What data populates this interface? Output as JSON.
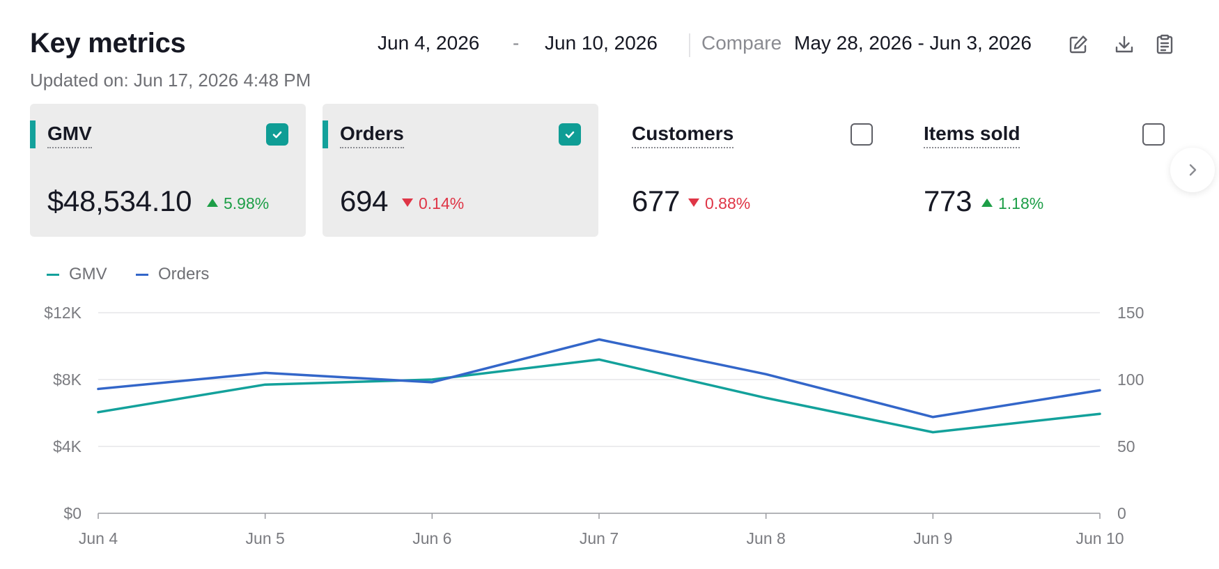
{
  "header": {
    "title": "Key metrics",
    "updated": "Updated on: Jun 17, 2026 4:48 PM",
    "date_start": "Jun 4, 2026",
    "date_sep": "-",
    "date_end": "Jun 10, 2026",
    "compare_label": "Compare",
    "compare_range": "May 28, 2026 - Jun 3, 2026"
  },
  "icons": [
    "edit-icon",
    "download-icon",
    "clipboard-icon",
    "chevron-right-icon",
    "checkmark-icon"
  ],
  "cards": [
    {
      "label": "GMV",
      "value": "$48,534.10",
      "delta": "5.98%",
      "direction": "up",
      "selected": true
    },
    {
      "label": "Orders",
      "value": "694",
      "delta": "0.14%",
      "direction": "down",
      "selected": true
    },
    {
      "label": "Customers",
      "value": "677",
      "delta": "0.88%",
      "direction": "down",
      "selected": false
    },
    {
      "label": "Items sold",
      "value": "773",
      "delta": "1.18%",
      "direction": "up",
      "selected": false
    }
  ],
  "colors": {
    "gmv": "#13a19b",
    "orders": "#3366c9",
    "positive": "#1d9e47",
    "negative": "#df3546",
    "selected_card": "#ececec"
  },
  "chart_data": {
    "type": "line",
    "legend_position": "top-left",
    "grid": true,
    "x": [
      "Jun 4",
      "Jun 5",
      "Jun 6",
      "Jun 7",
      "Jun 8",
      "Jun 9",
      "Jun 10"
    ],
    "y_left": {
      "ylim": [
        0,
        12000
      ],
      "ticks": [
        0,
        4000,
        8000,
        12000
      ],
      "tick_labels": [
        "$0",
        "$4K",
        "$8K",
        "$12K"
      ]
    },
    "y_right": {
      "ylim": [
        0,
        150
      ],
      "ticks": [
        0,
        50,
        100,
        150
      ],
      "tick_labels": [
        "0",
        "50",
        "100",
        "150"
      ]
    },
    "series": [
      {
        "name": "GMV",
        "axis": "left",
        "values": [
          6050,
          7700,
          8000,
          9200,
          6900,
          4850,
          5950
        ]
      },
      {
        "name": "Orders",
        "axis": "right",
        "values": [
          93,
          105,
          98,
          130,
          104,
          72,
          92
        ]
      }
    ]
  }
}
